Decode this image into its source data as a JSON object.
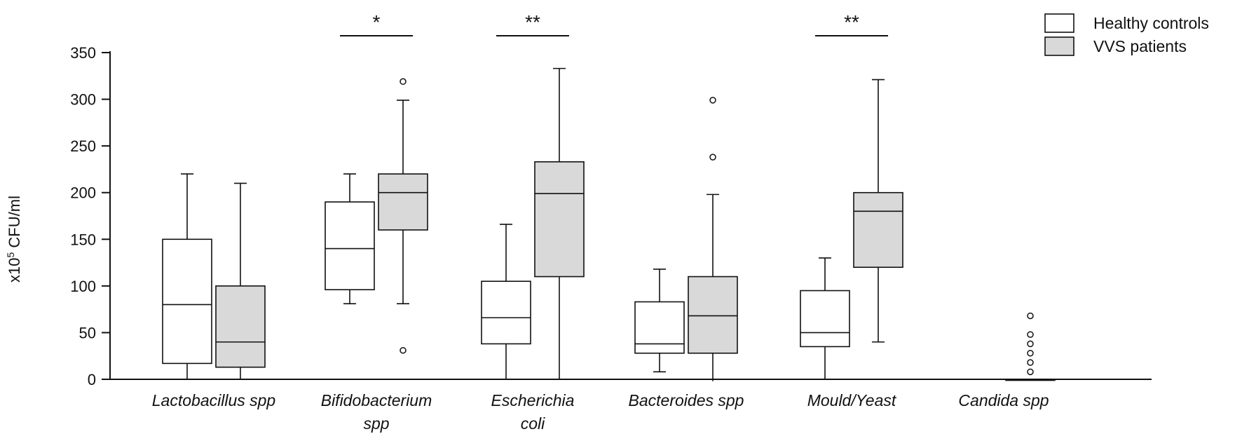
{
  "chart_data": {
    "type": "boxplot",
    "ylabel": {
      "prefix": "x10",
      "sup": "5",
      "suffix": " CFU/ml"
    },
    "ylim": [
      0,
      350
    ],
    "yticks": [
      "0",
      "50",
      "100",
      "150",
      "200",
      "250",
      "300",
      "350"
    ],
    "legend": {
      "placement": "top-right",
      "entries": [
        {
          "label": "Healthy controls",
          "fill": "#ffffff"
        },
        {
          "label": "VVS patients",
          "fill": "#d9d9d9"
        }
      ]
    },
    "groups": [
      {
        "label_lines": [
          "Lactobacillus spp"
        ],
        "significance": "",
        "boxes": [
          {
            "series": "Healthy controls",
            "min": 0,
            "q1": 17,
            "median": 80,
            "q3": 150,
            "max": 220,
            "outliers": []
          },
          {
            "series": "VVS patients",
            "min": 0,
            "q1": 13,
            "median": 40,
            "q3": 100,
            "max": 210,
            "outliers": []
          }
        ]
      },
      {
        "label_lines": [
          "Bifidobacterium",
          "spp"
        ],
        "significance": "*",
        "boxes": [
          {
            "series": "Healthy controls",
            "min": 81,
            "q1": 96,
            "median": 140,
            "q3": 190,
            "max": 220,
            "outliers": []
          },
          {
            "series": "VVS patients",
            "min": 81,
            "q1": 160,
            "median": 200,
            "q3": 220,
            "max": 299,
            "outliers": [
              31,
              319
            ]
          }
        ]
      },
      {
        "label_lines": [
          "Escherichia",
          "coli"
        ],
        "significance": "**",
        "boxes": [
          {
            "series": "Healthy controls",
            "min": 0,
            "q1": 38,
            "median": 66,
            "q3": 105,
            "max": 166,
            "outliers": []
          },
          {
            "series": "VVS patients",
            "min": 0,
            "q1": 110,
            "median": 199,
            "q3": 233,
            "max": 333,
            "outliers": []
          }
        ]
      },
      {
        "label_lines": [
          "Bacteroides spp"
        ],
        "significance": "",
        "boxes": [
          {
            "series": "Healthy controls",
            "min": 8,
            "q1": 28,
            "median": 38,
            "q3": 83,
            "max": 118,
            "outliers": []
          },
          {
            "series": "VVS patients",
            "min": -2,
            "q1": 28,
            "median": 68,
            "q3": 110,
            "max": 198,
            "outliers": [
              238,
              299
            ]
          }
        ]
      },
      {
        "label_lines": [
          "Mould/Yeast"
        ],
        "significance": "**",
        "boxes": [
          {
            "series": "Healthy controls",
            "min": 0,
            "q1": 35,
            "median": 50,
            "q3": 95,
            "max": 130,
            "outliers": []
          },
          {
            "series": "VVS patients",
            "min": 40,
            "q1": 120,
            "median": 180,
            "q3": 200,
            "max": 321,
            "outliers": []
          }
        ]
      },
      {
        "label_lines": [
          "Candida spp"
        ],
        "significance": "",
        "boxes": [
          {
            "series": "VVS patients",
            "min": 0,
            "q1": 0,
            "median": 0,
            "q3": 0,
            "max": 0,
            "outliers": [
              8,
              18,
              28,
              38,
              48,
              68
            ]
          }
        ]
      }
    ]
  }
}
